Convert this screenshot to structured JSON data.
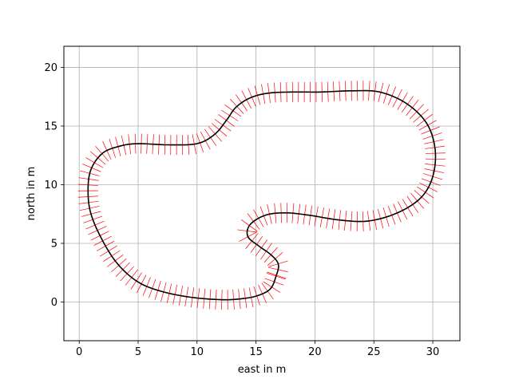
{
  "chart_data": {
    "type": "line",
    "title": "",
    "xlabel": "east in m",
    "ylabel": "north in m",
    "xlim": [
      -1.3,
      32.3
    ],
    "ylim": [
      -3.3,
      21.8
    ],
    "xticks": [
      0,
      5,
      10,
      15,
      20,
      25,
      30
    ],
    "yticks": [
      0,
      5,
      10,
      15,
      20
    ],
    "grid": true,
    "colors": {
      "track": "#000000",
      "normals": "#ff0000",
      "grid": "#b0b0b0"
    },
    "normal_half_length_m": 0.85,
    "track_closed": true,
    "track_points": [
      [
        16.7,
        2.2
      ],
      [
        16.2,
        1.1
      ],
      [
        15.0,
        0.5
      ],
      [
        13.5,
        0.25
      ],
      [
        12.0,
        0.2
      ],
      [
        9.5,
        0.4
      ],
      [
        7.0,
        0.9
      ],
      [
        5.0,
        1.7
      ],
      [
        3.3,
        3.2
      ],
      [
        2.0,
        5.2
      ],
      [
        1.0,
        7.5
      ],
      [
        0.75,
        9.5
      ],
      [
        1.0,
        11.3
      ],
      [
        2.0,
        12.7
      ],
      [
        3.5,
        13.3
      ],
      [
        5.0,
        13.5
      ],
      [
        7.5,
        13.4
      ],
      [
        10.0,
        13.5
      ],
      [
        11.5,
        14.3
      ],
      [
        12.5,
        15.5
      ],
      [
        13.3,
        16.6
      ],
      [
        14.5,
        17.4
      ],
      [
        16.0,
        17.8
      ],
      [
        18.0,
        17.9
      ],
      [
        20.5,
        17.9
      ],
      [
        23.0,
        18.0
      ],
      [
        25.5,
        17.9
      ],
      [
        27.8,
        16.9
      ],
      [
        29.5,
        15.2
      ],
      [
        30.2,
        13.0
      ],
      [
        30.0,
        10.7
      ],
      [
        29.0,
        8.9
      ],
      [
        27.0,
        7.6
      ],
      [
        24.5,
        6.9
      ],
      [
        22.0,
        7.0
      ],
      [
        19.5,
        7.4
      ],
      [
        17.5,
        7.6
      ],
      [
        15.8,
        7.4
      ],
      [
        14.5,
        6.6
      ],
      [
        14.3,
        5.6
      ],
      [
        15.2,
        4.8
      ],
      [
        16.3,
        4.0
      ],
      [
        16.9,
        3.2
      ]
    ]
  }
}
